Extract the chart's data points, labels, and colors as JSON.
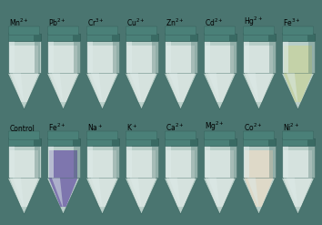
{
  "figsize": [
    3.54,
    2.47
  ],
  "dpi": 100,
  "background_color": "#4a7570",
  "row1_labels": [
    "Control",
    "Fe$^{2+}$",
    "Na$^+$",
    "K$^+$",
    "Ca$^{2+}$",
    "Mg$^{2+}$",
    "Co$^{2+}$",
    "Ni$^{2+}$"
  ],
  "row2_labels": [
    "Mn$^{2+}$",
    "Pb$^{2+}$",
    "Cr$^{3+}$",
    "Cu$^{2+}$",
    "Zn$^{2+}$",
    "Cd$^{2+}$",
    "Hg$^{2+}$",
    "Fe$^{3+}$"
  ],
  "label_color": "#000000",
  "label_fontsize": 5.5,
  "n_cols": 8,
  "tube_bg": "#7aada8",
  "tube_body": "#b8cec8",
  "tube_shine": "#ddeae8",
  "tube_dark": "#3a6560",
  "tube_cap": "#4a8078",
  "tube_cap_dark": "#2a5550",
  "sol_default": "#dde8e4",
  "sol_fe2_top": "#7060a8",
  "sol_fe2_bot": "#5848a0",
  "sol_fe3": "#c8d4a0",
  "sol_co2": "#e8ddc8",
  "sol_fe3_dark": "#a0b870"
}
